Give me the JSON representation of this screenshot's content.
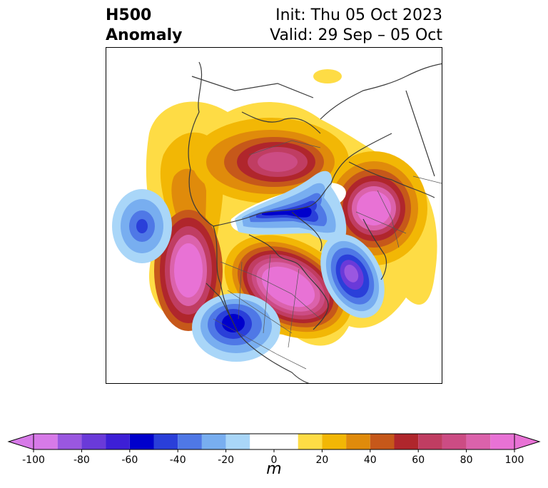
{
  "title": {
    "field_line1": "H500",
    "field_line2": "Anomaly",
    "init": "Init: Thu 05 Oct 2023",
    "valid": "Valid: 29 Sep – 05 Oct"
  },
  "colorbar": {
    "unit": "m",
    "tick_labels": [
      "-100",
      "-80",
      "-60",
      "-40",
      "-20",
      "0",
      "20",
      "40",
      "60",
      "80",
      "100"
    ],
    "levels": [
      -100,
      -90,
      -80,
      -70,
      -60,
      -50,
      -40,
      -30,
      -20,
      -10,
      10,
      20,
      30,
      40,
      50,
      60,
      70,
      80,
      90,
      100
    ],
    "colors": [
      "#d77ae8",
      "#9a57e0",
      "#6a3ad9",
      "#3d1fd6",
      "#0000cc",
      "#2a3fd9",
      "#4f78e6",
      "#78aef0",
      "#a9d6f8",
      "#ffffff",
      "#fedc45",
      "#f2b705",
      "#e08b0b",
      "#c6581a",
      "#b0262c",
      "#c03d62",
      "#cc4c84",
      "#db62ab",
      "#e872d5"
    ],
    "extend": "both",
    "under_color": "#d77ae8",
    "over_color": "#e872d5"
  },
  "map": {
    "projection": "north-polar-stereographic",
    "region": "North America / Arctic"
  }
}
